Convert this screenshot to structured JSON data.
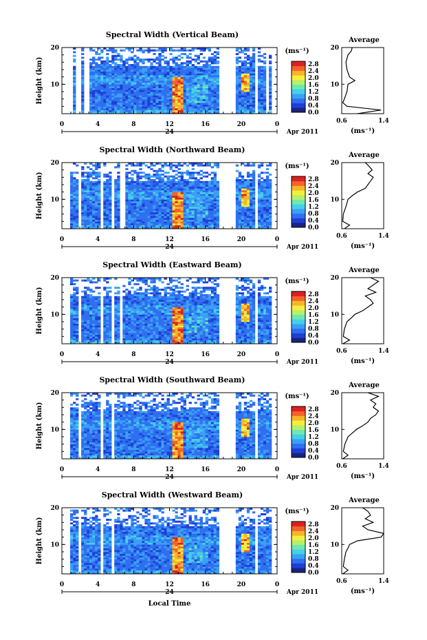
{
  "colorbar": {
    "unit": "(ms⁻¹)",
    "ticks": [
      "2.8",
      "2.4",
      "2.0",
      "1.6",
      "1.2",
      "0.8",
      "0.4",
      "0.0"
    ],
    "colors": [
      "#1a237e",
      "#1e3fd6",
      "#2f6ff0",
      "#3aa0f5",
      "#45cfe8",
      "#6fe8b0",
      "#b5f06a",
      "#f5ef3c",
      "#f7b52a",
      "#f2632a",
      "#dd2020"
    ]
  },
  "x_axis": {
    "ticks": [
      "0",
      "4",
      "8",
      "12",
      "16",
      "20",
      "0"
    ],
    "day_label": "24",
    "date_label": "Apr 2011",
    "label": "Local Time"
  },
  "y_axis": {
    "label": "Height (km)",
    "ticks": [
      "10",
      "20"
    ]
  },
  "average_axis": {
    "title": "Average",
    "xticks": [
      "0.6",
      "1.4"
    ],
    "xunit": "(ms⁻¹)",
    "yticks": [
      "10",
      "20"
    ]
  },
  "chart_data": [
    {
      "type": "heatmap",
      "title": "Spectral Width (Vertical Beam)",
      "xlim": [
        0,
        24
      ],
      "ylim": [
        2,
        20
      ],
      "clim": [
        0.0,
        3.0
      ],
      "data_gaps_hours": [
        [
          1.0,
          1.3
        ],
        [
          1.6,
          2.0
        ],
        [
          2.6,
          3.1
        ],
        [
          17.6,
          19.4
        ],
        [
          21.6,
          21.9
        ],
        [
          22.8,
          23.1
        ]
      ],
      "average_profile": {
        "height_km": [
          2,
          3,
          4,
          5,
          6,
          8,
          10,
          11,
          12,
          14,
          16,
          18,
          19,
          20
        ],
        "width_ms": [
          0.9,
          1.35,
          0.7,
          0.62,
          0.65,
          0.7,
          0.72,
          0.85,
          0.75,
          0.7,
          0.68,
          0.72,
          0.78,
          0.8
        ]
      }
    },
    {
      "type": "heatmap",
      "title": "Spectral Width (Northward Beam)",
      "xlim": [
        0,
        24
      ],
      "ylim": [
        2,
        20
      ],
      "clim": [
        0.0,
        3.0
      ],
      "data_gaps_hours": [
        [
          1.9,
          2.2
        ],
        [
          4.4,
          4.7
        ],
        [
          5.6,
          5.9
        ],
        [
          6.6,
          7.0
        ],
        [
          17.6,
          19.4
        ],
        [
          21.6,
          21.9
        ]
      ],
      "average_profile": {
        "height_km": [
          2,
          3,
          4,
          6,
          8,
          10,
          11,
          12,
          13,
          14,
          15,
          16,
          17,
          18,
          19,
          20
        ],
        "width_ms": [
          0.65,
          0.75,
          0.62,
          0.63,
          0.68,
          0.72,
          0.8,
          0.9,
          1.05,
          1.1,
          1.15,
          1.2,
          1.1,
          1.18,
          1.12,
          1.05
        ]
      }
    },
    {
      "type": "heatmap",
      "title": "Spectral Width (Eastward Beam)",
      "xlim": [
        0,
        24
      ],
      "ylim": [
        2,
        20
      ],
      "clim": [
        0.0,
        3.0
      ],
      "data_gaps_hours": [
        [
          1.9,
          2.2
        ],
        [
          4.4,
          4.7
        ],
        [
          5.6,
          5.9
        ],
        [
          6.5,
          6.8
        ],
        [
          17.6,
          19.4
        ],
        [
          21.6,
          21.9
        ]
      ],
      "average_profile": {
        "height_km": [
          2,
          3,
          4,
          6,
          8,
          9,
          10,
          11,
          12,
          13,
          14,
          15,
          16,
          17,
          18,
          19,
          20
        ],
        "width_ms": [
          0.62,
          0.75,
          0.63,
          0.65,
          0.7,
          0.78,
          0.85,
          1.0,
          1.1,
          1.2,
          1.15,
          1.05,
          1.25,
          1.1,
          1.2,
          1.3,
          1.15
        ]
      }
    },
    {
      "type": "heatmap",
      "title": "Spectral Width (Southward Beam)",
      "xlim": [
        0,
        24
      ],
      "ylim": [
        2,
        20
      ],
      "clim": [
        0.0,
        3.0
      ],
      "data_gaps_hours": [
        [
          1.9,
          2.2
        ],
        [
          4.4,
          4.7
        ],
        [
          5.6,
          5.9
        ],
        [
          17.6,
          19.4
        ],
        [
          21.6,
          21.9
        ]
      ],
      "average_profile": {
        "height_km": [
          2,
          3,
          4,
          6,
          8,
          9,
          10,
          11,
          12,
          13,
          14,
          15,
          16,
          17,
          18,
          19,
          20
        ],
        "width_ms": [
          0.62,
          0.72,
          0.63,
          0.66,
          0.72,
          0.8,
          0.88,
          1.0,
          1.1,
          1.15,
          1.25,
          1.3,
          1.2,
          1.25,
          1.15,
          1.3,
          1.1
        ]
      }
    },
    {
      "type": "heatmap",
      "title": "Spectral Width (Westward Beam)",
      "xlim": [
        0,
        24
      ],
      "ylim": [
        2,
        20
      ],
      "clim": [
        0.0,
        3.0
      ],
      "data_gaps_hours": [
        [
          1.9,
          2.2
        ],
        [
          4.4,
          4.7
        ],
        [
          5.6,
          5.9
        ],
        [
          17.6,
          19.4
        ],
        [
          21.6,
          21.9
        ]
      ],
      "average_profile": {
        "height_km": [
          2,
          3,
          4,
          6,
          8,
          9,
          10,
          11,
          12,
          13,
          14,
          15,
          16,
          17,
          18,
          19,
          20
        ],
        "width_ms": [
          0.62,
          0.72,
          0.63,
          0.65,
          0.68,
          0.72,
          0.75,
          0.9,
          1.35,
          1.45,
          1.1,
          1.0,
          1.2,
          1.05,
          1.15,
          1.1,
          1.0
        ]
      }
    }
  ]
}
